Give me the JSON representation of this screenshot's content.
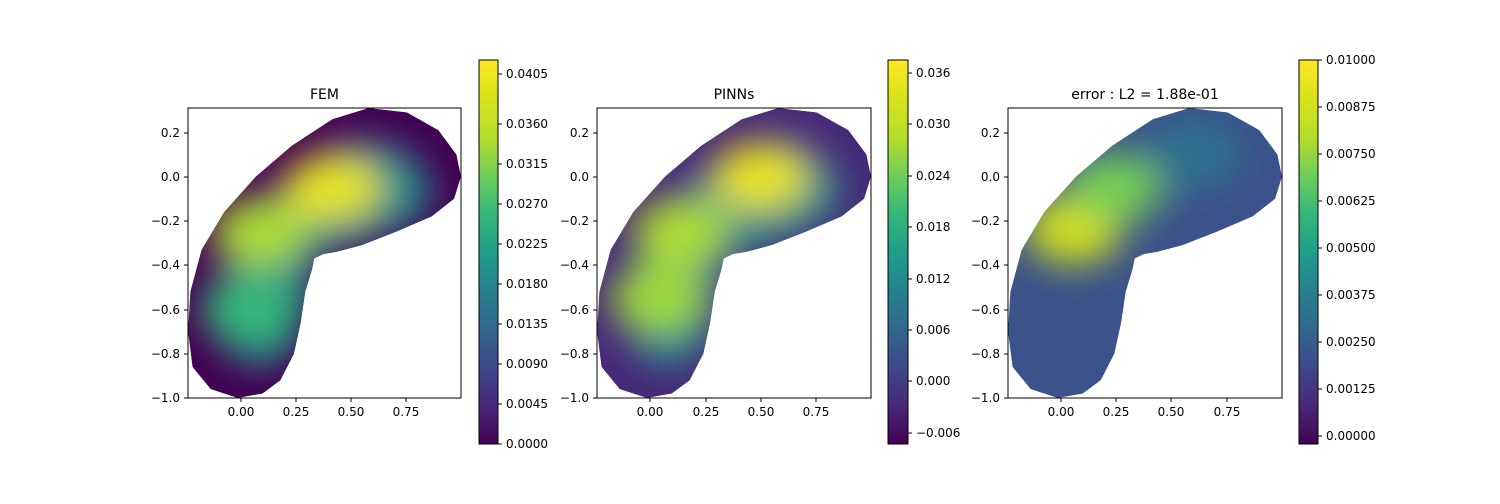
{
  "chart_data": [
    {
      "type": "heatmap",
      "title": "FEM",
      "xticks": [
        "0.00",
        "0.25",
        "0.50",
        "0.75"
      ],
      "yticks": [
        "0.2",
        "0.0",
        "−0.2",
        "−0.4",
        "−0.6",
        "−0.8",
        "−1.0"
      ],
      "xlim": [
        -0.22,
        0.99
      ],
      "ylim": [
        -1.0,
        0.31
      ],
      "colorbar": {
        "min": 0.0,
        "max": 0.0432,
        "ticks": [
          "0.0000",
          "0.0045",
          "0.0090",
          "0.0135",
          "0.0180",
          "0.0225",
          "0.0270",
          "0.0315",
          "0.0360",
          "0.0405"
        ]
      },
      "hotspots": [
        {
          "x": 0.42,
          "y": -0.05,
          "value": 0.0405
        },
        {
          "x": 0.1,
          "y": -0.25,
          "value": 0.034
        },
        {
          "x": 0.05,
          "y": -0.6,
          "value": 0.026
        }
      ]
    },
    {
      "type": "heatmap",
      "title": "PINNs",
      "xticks": [
        "0.00",
        "0.25",
        "0.50",
        "0.75"
      ],
      "yticks": [
        "0.2",
        "0.0",
        "−0.2",
        "−0.4",
        "−0.6",
        "−0.8",
        "−1.0"
      ],
      "xlim": [
        -0.22,
        0.99
      ],
      "ylim": [
        -1.0,
        0.31
      ],
      "colorbar": {
        "min": -0.0075,
        "max": 0.0375,
        "ticks": [
          "−0.006",
          "0.000",
          "0.006",
          "0.012",
          "0.018",
          "0.024",
          "0.030",
          "0.036"
        ]
      },
      "hotspots": [
        {
          "x": 0.5,
          "y": 0.0,
          "value": 0.035
        },
        {
          "x": 0.15,
          "y": -0.25,
          "value": 0.028
        },
        {
          "x": 0.05,
          "y": -0.55,
          "value": 0.027
        }
      ]
    },
    {
      "type": "heatmap",
      "title": "error : L2 = 1.88e-01",
      "xticks": [
        "0.00",
        "0.25",
        "0.50",
        "0.75"
      ],
      "yticks": [
        "0.2",
        "0.0",
        "−0.2",
        "−0.4",
        "−0.6",
        "−0.8",
        "−1.0"
      ],
      "xlim": [
        -0.22,
        0.99
      ],
      "ylim": [
        -1.0,
        0.31
      ],
      "colorbar": {
        "min": -0.0003,
        "max": 0.01,
        "ticks": [
          "0.00000",
          "0.00125",
          "0.00250",
          "0.00375",
          "0.00500",
          "0.00625",
          "0.00750",
          "0.00875",
          "0.01000"
        ]
      },
      "hotspots": [
        {
          "x": 0.07,
          "y": -0.24,
          "value": 0.0088
        },
        {
          "x": 0.25,
          "y": -0.05,
          "value": 0.007
        },
        {
          "x": 0.6,
          "y": 0.1,
          "value": 0.0032
        }
      ]
    }
  ]
}
